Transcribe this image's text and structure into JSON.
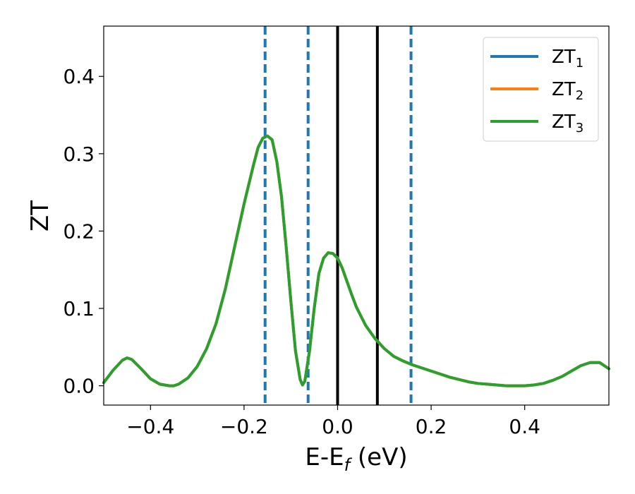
{
  "chart_data": {
    "type": "line",
    "title": "",
    "xlabel": "E-E",
    "xlabel_sub": "f",
    "xlabel_unit": " (eV)",
    "ylabel": "ZT",
    "xlim": [
      -0.5,
      0.58
    ],
    "ylim": [
      -0.025,
      0.465
    ],
    "xticks": [
      -0.4,
      -0.2,
      0.0,
      0.2,
      0.4
    ],
    "xtick_labels": [
      "−0.4",
      "−0.2",
      "0.0",
      "0.2",
      "0.4"
    ],
    "yticks": [
      0.0,
      0.1,
      0.2,
      0.3,
      0.4
    ],
    "ytick_labels": [
      "0.0",
      "0.1",
      "0.2",
      "0.3",
      "0.4"
    ],
    "grid": false,
    "legend_position": "top-right",
    "series": [
      {
        "name": "ZT",
        "name_sub": "1",
        "color": "#1f77b4",
        "x": [
          -0.5,
          -0.48,
          -0.46,
          -0.45,
          -0.44,
          -0.42,
          -0.4,
          -0.38,
          -0.36,
          -0.35,
          -0.34,
          -0.32,
          -0.3,
          -0.28,
          -0.26,
          -0.24,
          -0.22,
          -0.2,
          -0.18,
          -0.17,
          -0.16,
          -0.15,
          -0.14,
          -0.13,
          -0.12,
          -0.11,
          -0.1,
          -0.09,
          -0.08,
          -0.075,
          -0.07,
          -0.06,
          -0.05,
          -0.04,
          -0.03,
          -0.02,
          -0.01,
          0.0,
          0.01,
          0.02,
          0.03,
          0.04,
          0.06,
          0.08,
          0.1,
          0.12,
          0.14,
          0.16,
          0.18,
          0.2,
          0.22,
          0.24,
          0.26,
          0.28,
          0.3,
          0.32,
          0.34,
          0.36,
          0.38,
          0.4,
          0.42,
          0.44,
          0.46,
          0.48,
          0.5,
          0.52,
          0.54,
          0.56,
          0.58
        ],
        "y": [
          0.004,
          0.02,
          0.033,
          0.036,
          0.034,
          0.022,
          0.009,
          0.002,
          0.0,
          0.0,
          0.002,
          0.01,
          0.025,
          0.048,
          0.08,
          0.125,
          0.18,
          0.235,
          0.285,
          0.308,
          0.32,
          0.323,
          0.318,
          0.29,
          0.245,
          0.18,
          0.11,
          0.045,
          0.008,
          0.001,
          0.006,
          0.045,
          0.1,
          0.145,
          0.165,
          0.172,
          0.171,
          0.165,
          0.152,
          0.135,
          0.118,
          0.102,
          0.078,
          0.061,
          0.048,
          0.038,
          0.032,
          0.027,
          0.023,
          0.019,
          0.015,
          0.011,
          0.008,
          0.005,
          0.003,
          0.002,
          0.001,
          0.0,
          0.0,
          0.0,
          0.001,
          0.003,
          0.007,
          0.012,
          0.019,
          0.026,
          0.03,
          0.03,
          0.022
        ]
      },
      {
        "name": "ZT",
        "name_sub": "2",
        "color": "#ff7f0e",
        "x": [
          -0.5,
          -0.48,
          -0.46,
          -0.45,
          -0.44,
          -0.42,
          -0.4,
          -0.38,
          -0.36,
          -0.35,
          -0.34,
          -0.32,
          -0.3,
          -0.28,
          -0.26,
          -0.24,
          -0.22,
          -0.2,
          -0.18,
          -0.17,
          -0.16,
          -0.15,
          -0.14,
          -0.13,
          -0.12,
          -0.11,
          -0.1,
          -0.09,
          -0.08,
          -0.075,
          -0.07,
          -0.06,
          -0.05,
          -0.04,
          -0.03,
          -0.02,
          -0.01,
          0.0,
          0.01,
          0.02,
          0.03,
          0.04,
          0.06,
          0.08,
          0.1,
          0.12,
          0.14,
          0.16,
          0.18,
          0.2,
          0.22,
          0.24,
          0.26,
          0.28,
          0.3,
          0.32,
          0.34,
          0.36,
          0.38,
          0.4,
          0.42,
          0.44,
          0.46,
          0.48,
          0.5,
          0.52,
          0.54,
          0.56,
          0.58
        ],
        "y": [
          0.004,
          0.02,
          0.033,
          0.036,
          0.034,
          0.022,
          0.009,
          0.002,
          0.0,
          0.0,
          0.002,
          0.01,
          0.025,
          0.048,
          0.08,
          0.125,
          0.18,
          0.235,
          0.285,
          0.308,
          0.32,
          0.323,
          0.318,
          0.29,
          0.245,
          0.18,
          0.11,
          0.045,
          0.008,
          0.001,
          0.006,
          0.045,
          0.1,
          0.145,
          0.165,
          0.172,
          0.171,
          0.165,
          0.152,
          0.135,
          0.118,
          0.102,
          0.078,
          0.061,
          0.048,
          0.038,
          0.032,
          0.027,
          0.023,
          0.019,
          0.015,
          0.011,
          0.008,
          0.005,
          0.003,
          0.002,
          0.001,
          0.0,
          0.0,
          0.0,
          0.001,
          0.003,
          0.007,
          0.012,
          0.019,
          0.026,
          0.03,
          0.03,
          0.022
        ]
      },
      {
        "name": "ZT",
        "name_sub": "3",
        "color": "#2ca02c",
        "x": [
          -0.5,
          -0.48,
          -0.46,
          -0.45,
          -0.44,
          -0.42,
          -0.4,
          -0.38,
          -0.36,
          -0.35,
          -0.34,
          -0.32,
          -0.3,
          -0.28,
          -0.26,
          -0.24,
          -0.22,
          -0.2,
          -0.18,
          -0.17,
          -0.16,
          -0.15,
          -0.14,
          -0.13,
          -0.12,
          -0.11,
          -0.1,
          -0.09,
          -0.08,
          -0.075,
          -0.07,
          -0.06,
          -0.05,
          -0.04,
          -0.03,
          -0.02,
          -0.01,
          0.0,
          0.01,
          0.02,
          0.03,
          0.04,
          0.06,
          0.08,
          0.1,
          0.12,
          0.14,
          0.16,
          0.18,
          0.2,
          0.22,
          0.24,
          0.26,
          0.28,
          0.3,
          0.32,
          0.34,
          0.36,
          0.38,
          0.4,
          0.42,
          0.44,
          0.46,
          0.48,
          0.5,
          0.52,
          0.54,
          0.56,
          0.58
        ],
        "y": [
          0.004,
          0.02,
          0.033,
          0.036,
          0.034,
          0.022,
          0.009,
          0.002,
          0.0,
          0.0,
          0.002,
          0.01,
          0.025,
          0.048,
          0.08,
          0.125,
          0.18,
          0.235,
          0.285,
          0.308,
          0.32,
          0.323,
          0.318,
          0.29,
          0.245,
          0.18,
          0.11,
          0.045,
          0.008,
          0.001,
          0.006,
          0.045,
          0.1,
          0.145,
          0.165,
          0.172,
          0.171,
          0.165,
          0.152,
          0.135,
          0.118,
          0.102,
          0.078,
          0.061,
          0.048,
          0.038,
          0.032,
          0.027,
          0.023,
          0.019,
          0.015,
          0.011,
          0.008,
          0.005,
          0.003,
          0.002,
          0.001,
          0.0,
          0.0,
          0.0,
          0.001,
          0.003,
          0.007,
          0.012,
          0.019,
          0.026,
          0.03,
          0.03,
          0.022
        ]
      }
    ],
    "vlines": [
      {
        "x": -0.155,
        "style": "dashed",
        "color": "#1f77b4"
      },
      {
        "x": -0.063,
        "style": "dashed",
        "color": "#1f77b4"
      },
      {
        "x": 0.0,
        "style": "solid",
        "color": "#000000"
      },
      {
        "x": 0.085,
        "style": "solid",
        "color": "#000000"
      },
      {
        "x": 0.157,
        "style": "dashed",
        "color": "#1f77b4"
      }
    ]
  }
}
